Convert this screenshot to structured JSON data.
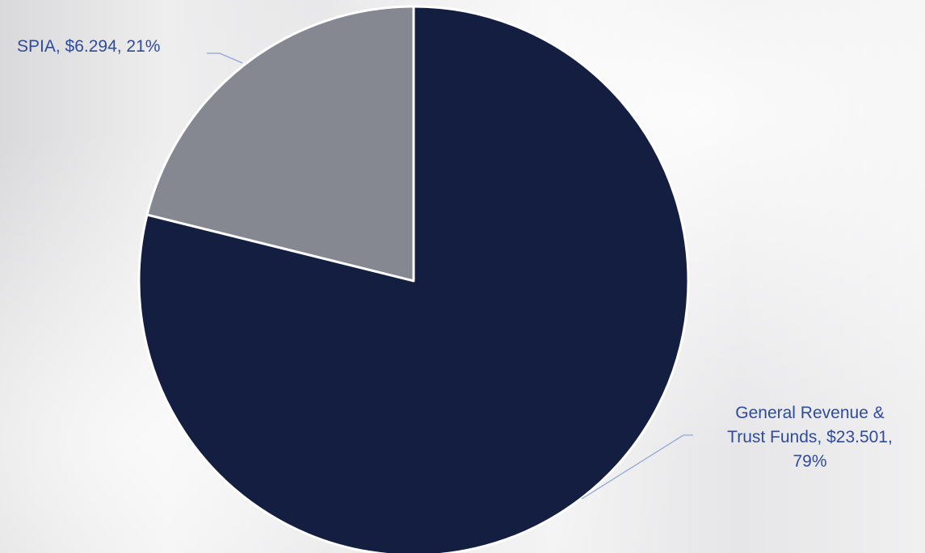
{
  "chart_data": {
    "type": "pie",
    "title": "",
    "slices": [
      {
        "label": "SPIA",
        "value": 6.294,
        "percent": 21,
        "color": "#868891"
      },
      {
        "label": "General Revenue & Trust Funds",
        "value": 23.501,
        "percent": 79,
        "color": "#131e40"
      }
    ],
    "data_labels": [
      [
        "SPIA, $6.294, 21%"
      ],
      [
        "General Revenue &",
        "Trust Funds, $23.501,",
        "79%"
      ]
    ],
    "leader_line_color": "#8fa6d6"
  }
}
